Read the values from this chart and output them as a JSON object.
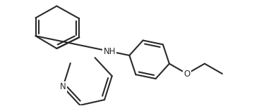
{
  "background_color": "#ffffff",
  "line_color": "#2a2a2a",
  "line_width": 1.5,
  "figsize": [
    3.87,
    1.51
  ],
  "dpi": 100,
  "xlim": [
    0,
    387
  ],
  "ylim": [
    0,
    151
  ]
}
